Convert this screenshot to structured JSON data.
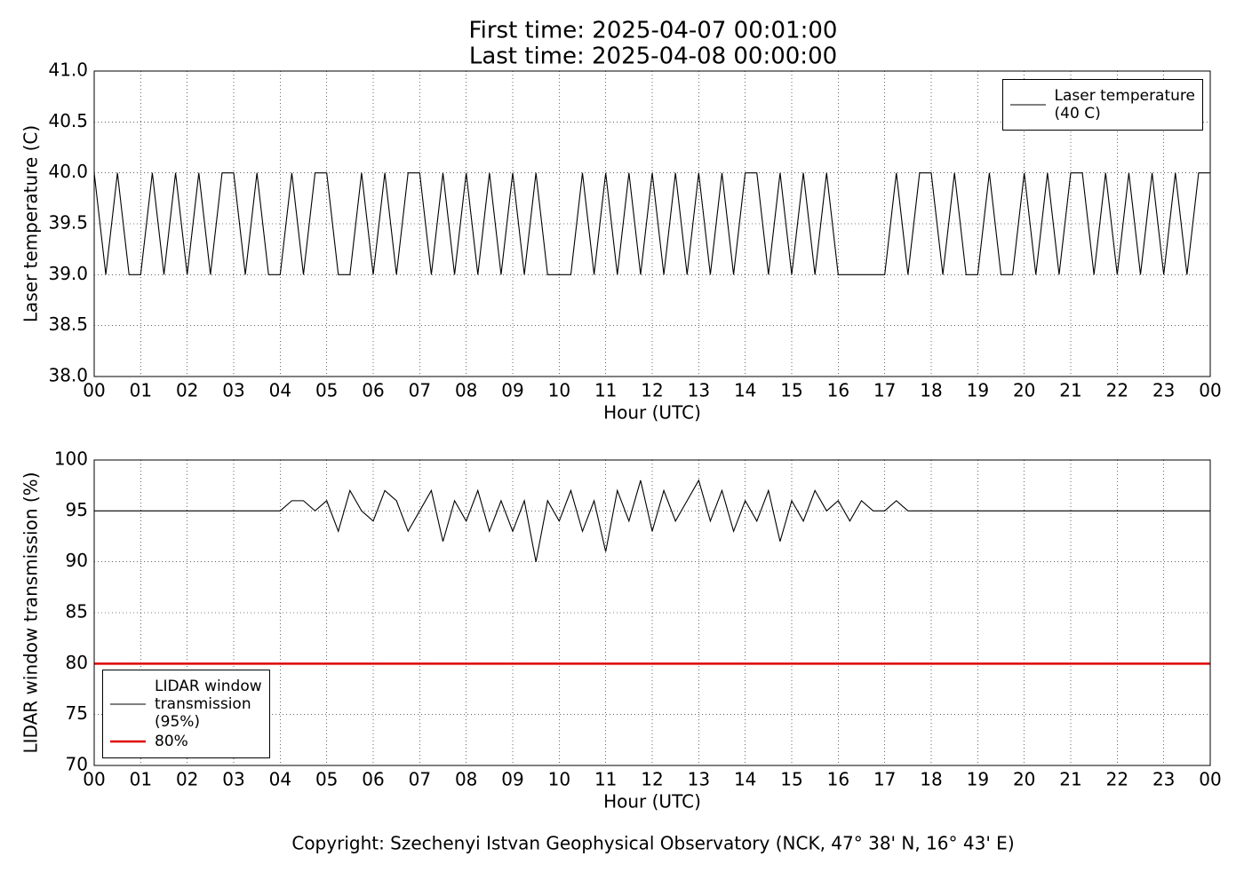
{
  "header": {
    "title_lines": [
      "First time: 2025-04-07 00:01:00",
      "Last time: 2025-04-08 00:00:00"
    ]
  },
  "footer": {
    "copyright": "Copyright: Szechenyi Istvan Geophysical Observatory (NCK, 47° 38' N, 16° 43' E)"
  },
  "chart_data": [
    {
      "type": "line",
      "y_label": "Laser temperature (C)",
      "x_label": "Hour (UTC)",
      "xlim": [
        0,
        24
      ],
      "xticks": [
        {
          "value": 0,
          "label": "00"
        },
        {
          "value": 1,
          "label": "01"
        },
        {
          "value": 2,
          "label": "02"
        },
        {
          "value": 3,
          "label": "03"
        },
        {
          "value": 4,
          "label": "04"
        },
        {
          "value": 5,
          "label": "05"
        },
        {
          "value": 6,
          "label": "06"
        },
        {
          "value": 7,
          "label": "07"
        },
        {
          "value": 8,
          "label": "08"
        },
        {
          "value": 9,
          "label": "09"
        },
        {
          "value": 10,
          "label": "10"
        },
        {
          "value": 11,
          "label": "11"
        },
        {
          "value": 12,
          "label": "12"
        },
        {
          "value": 13,
          "label": "13"
        },
        {
          "value": 14,
          "label": "14"
        },
        {
          "value": 15,
          "label": "15"
        },
        {
          "value": 16,
          "label": "16"
        },
        {
          "value": 17,
          "label": "17"
        },
        {
          "value": 18,
          "label": "18"
        },
        {
          "value": 19,
          "label": "19"
        },
        {
          "value": 20,
          "label": "20"
        },
        {
          "value": 21,
          "label": "21"
        },
        {
          "value": 22,
          "label": "22"
        },
        {
          "value": 23,
          "label": "23"
        },
        {
          "value": 24,
          "label": "00"
        }
      ],
      "ylim": [
        38,
        41
      ],
      "yticks": [
        {
          "value": 38,
          "label": "38.0"
        },
        {
          "value": 38.5,
          "label": "38.5"
        },
        {
          "value": 39,
          "label": "39.0"
        },
        {
          "value": 39.5,
          "label": "39.5"
        },
        {
          "value": 40,
          "label": "40.0"
        },
        {
          "value": 40.5,
          "label": "40.5"
        },
        {
          "value": 41,
          "label": "41.0"
        }
      ],
      "grid": true,
      "legend": "upper right",
      "x": [
        0,
        0.25,
        0.5,
        0.75,
        1,
        1.25,
        1.5,
        1.75,
        2,
        2.25,
        2.5,
        2.75,
        3,
        3.25,
        3.5,
        3.75,
        4,
        4.25,
        4.5,
        4.75,
        5,
        5.25,
        5.5,
        5.75,
        6,
        6.25,
        6.5,
        6.75,
        7,
        7.25,
        7.5,
        7.75,
        8,
        8.25,
        8.5,
        8.75,
        9,
        9.25,
        9.5,
        9.75,
        10,
        10.25,
        10.5,
        10.75,
        11,
        11.25,
        11.5,
        11.75,
        12,
        12.25,
        12.5,
        12.75,
        13,
        13.25,
        13.5,
        13.75,
        14,
        14.25,
        14.5,
        14.75,
        15,
        15.25,
        15.5,
        15.75,
        16,
        16.25,
        16.5,
        16.75,
        17,
        17.25,
        17.5,
        17.75,
        18,
        18.25,
        18.5,
        18.75,
        19,
        19.25,
        19.5,
        19.75,
        20,
        20.25,
        20.5,
        20.75,
        21,
        21.25,
        21.5,
        21.75,
        22,
        22.25,
        22.5,
        22.75,
        23,
        23.25,
        23.5,
        23.75,
        24
      ],
      "series": [
        {
          "name": "Laser temperature\n(40 C)",
          "color": "#000000",
          "values": [
            40,
            39,
            40,
            39,
            39,
            40,
            39,
            40,
            39,
            40,
            39,
            40,
            40,
            39,
            40,
            39,
            39,
            40,
            39,
            40,
            40,
            39,
            39,
            40,
            39,
            40,
            39,
            40,
            40,
            39,
            40,
            39,
            40,
            39,
            40,
            39,
            40,
            39,
            40,
            39,
            39,
            39,
            40,
            39,
            40,
            39,
            40,
            39,
            40,
            39,
            40,
            39,
            40,
            39,
            40,
            39,
            40,
            40,
            39,
            40,
            39,
            40,
            39,
            40,
            39,
            39,
            39,
            39,
            39,
            40,
            39,
            40,
            40,
            39,
            40,
            39,
            39,
            40,
            39,
            39,
            40,
            39,
            40,
            39,
            40,
            40,
            39,
            40,
            39,
            40,
            39,
            40,
            39,
            40,
            39,
            40,
            40
          ]
        }
      ]
    },
    {
      "type": "line",
      "y_label": "LIDAR window transmission (%)",
      "x_label": "Hour (UTC)",
      "xlim": [
        0,
        24
      ],
      "xticks": [
        {
          "value": 0,
          "label": "00"
        },
        {
          "value": 1,
          "label": "01"
        },
        {
          "value": 2,
          "label": "02"
        },
        {
          "value": 3,
          "label": "03"
        },
        {
          "value": 4,
          "label": "04"
        },
        {
          "value": 5,
          "label": "05"
        },
        {
          "value": 6,
          "label": "06"
        },
        {
          "value": 7,
          "label": "07"
        },
        {
          "value": 8,
          "label": "08"
        },
        {
          "value": 9,
          "label": "09"
        },
        {
          "value": 10,
          "label": "10"
        },
        {
          "value": 11,
          "label": "11"
        },
        {
          "value": 12,
          "label": "12"
        },
        {
          "value": 13,
          "label": "13"
        },
        {
          "value": 14,
          "label": "14"
        },
        {
          "value": 15,
          "label": "15"
        },
        {
          "value": 16,
          "label": "16"
        },
        {
          "value": 17,
          "label": "17"
        },
        {
          "value": 18,
          "label": "18"
        },
        {
          "value": 19,
          "label": "19"
        },
        {
          "value": 20,
          "label": "20"
        },
        {
          "value": 21,
          "label": "21"
        },
        {
          "value": 22,
          "label": "22"
        },
        {
          "value": 23,
          "label": "23"
        },
        {
          "value": 24,
          "label": "00"
        }
      ],
      "ylim": [
        70,
        100
      ],
      "yticks": [
        70,
        75,
        80,
        85,
        90,
        95,
        100
      ],
      "grid": true,
      "legend": "lower left",
      "x": [
        0,
        0.25,
        0.5,
        0.75,
        1,
        1.25,
        1.5,
        1.75,
        2,
        2.25,
        2.5,
        2.75,
        3,
        3.25,
        3.5,
        3.75,
        4,
        4.25,
        4.5,
        4.75,
        5,
        5.25,
        5.5,
        5.75,
        6,
        6.25,
        6.5,
        6.75,
        7,
        7.25,
        7.5,
        7.75,
        8,
        8.25,
        8.5,
        8.75,
        9,
        9.25,
        9.5,
        9.75,
        10,
        10.25,
        10.5,
        10.75,
        11,
        11.25,
        11.5,
        11.75,
        12,
        12.25,
        12.5,
        12.75,
        13,
        13.25,
        13.5,
        13.75,
        14,
        14.25,
        14.5,
        14.75,
        15,
        15.25,
        15.5,
        15.75,
        16,
        16.25,
        16.5,
        16.75,
        17,
        17.25,
        17.5,
        17.75,
        18,
        18.25,
        18.5,
        18.75,
        19,
        19.25,
        19.5,
        19.75,
        20,
        20.25,
        20.5,
        20.75,
        21,
        21.25,
        21.5,
        21.75,
        22,
        22.25,
        22.5,
        22.75,
        23,
        23.25,
        23.5,
        23.75,
        24
      ],
      "series": [
        {
          "name": "LIDAR window\ntransmission\n(95%)",
          "color": "#000000",
          "values": [
            95,
            95,
            95,
            95,
            95,
            95,
            95,
            95,
            95,
            95,
            95,
            95,
            95,
            95,
            95,
            95,
            95,
            96,
            96,
            95,
            96,
            93,
            97,
            95,
            94,
            97,
            96,
            93,
            95,
            97,
            92,
            96,
            94,
            97,
            93,
            96,
            93,
            96,
            90,
            96,
            94,
            97,
            93,
            96,
            91,
            97,
            94,
            98,
            93,
            97,
            94,
            96,
            98,
            94,
            97,
            93,
            96,
            94,
            97,
            92,
            96,
            94,
            97,
            95,
            96,
            94,
            96,
            95,
            95,
            96,
            95,
            95,
            95,
            95,
            95,
            95,
            95,
            95,
            95,
            95,
            95,
            95,
            95,
            95,
            95,
            95,
            95,
            95,
            95,
            95,
            95,
            95,
            95,
            95,
            95,
            95,
            95
          ]
        },
        {
          "name": "80%",
          "color": "#e00000",
          "x": [
            0,
            24
          ],
          "values": [
            80,
            80
          ]
        }
      ]
    }
  ]
}
